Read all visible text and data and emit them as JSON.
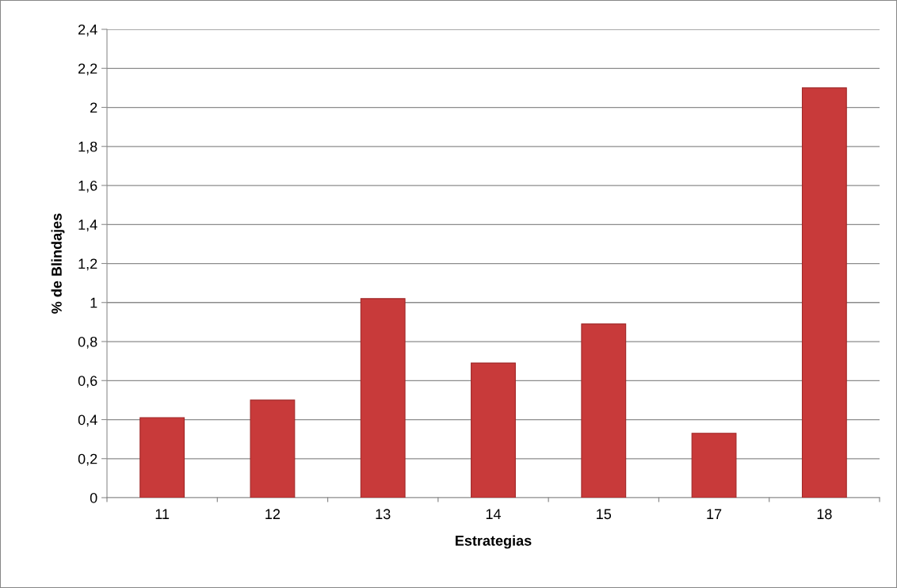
{
  "chart_data": {
    "type": "bar",
    "xlabel": "Estrategias",
    "ylabel": "% de Blindajes",
    "categories": [
      "11",
      "12",
      "13",
      "14",
      "15",
      "17",
      "18"
    ],
    "values": [
      0.41,
      0.5,
      1.02,
      0.69,
      0.89,
      0.33,
      2.1
    ],
    "color": "#c83a3a",
    "ylim": [
      0,
      2.4
    ],
    "yticks": [
      0,
      {
        "value": 0.2,
        "label": "0,2"
      },
      {
        "value": 0.4,
        "label": "0,4"
      },
      {
        "value": 0.6,
        "label": "0,6"
      },
      {
        "value": 0.8,
        "label": "0,8"
      },
      1,
      {
        "value": 1.2,
        "label": "1,2"
      },
      {
        "value": 1.4,
        "label": "1,4"
      },
      {
        "value": 1.6,
        "label": "1,6"
      },
      {
        "value": 1.8,
        "label": "1,8"
      },
      2,
      {
        "value": 2.2,
        "label": "2,2"
      },
      {
        "value": 2.4,
        "label": "2,4"
      }
    ],
    "grid": "y",
    "legend": false
  }
}
